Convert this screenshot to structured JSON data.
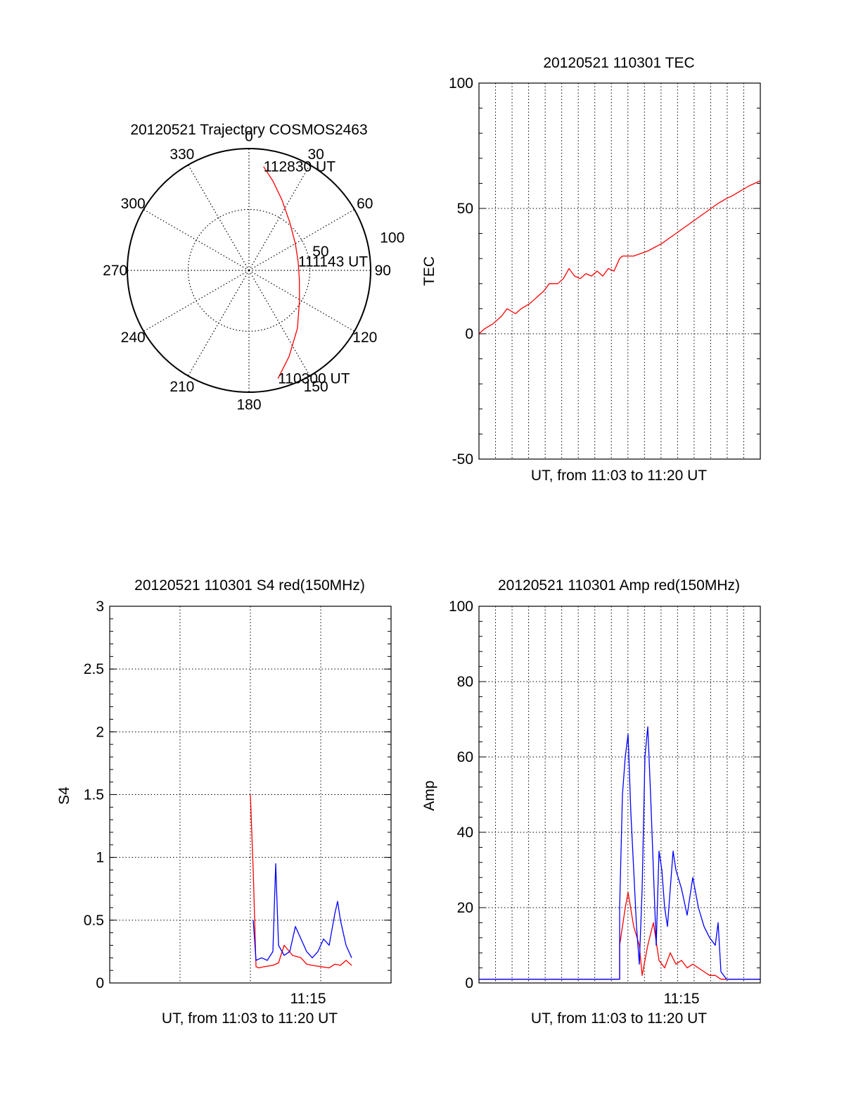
{
  "chart_data": [
    {
      "type": "polar",
      "title": "20120521 Trajectory COSMOS2463",
      "angle_labels": [
        "0",
        "30",
        "60",
        "90",
        "120",
        "150",
        "180",
        "210",
        "240",
        "270",
        "300",
        "330"
      ],
      "radial_labels": [
        "50",
        "100"
      ],
      "radius_max": 100,
      "grid": true,
      "series": [
        {
          "color": "#ff0000",
          "points": [
            {
              "az": 8,
              "r": 86
            },
            {
              "az": 15,
              "r": 76
            },
            {
              "az": 25,
              "r": 64
            },
            {
              "az": 40,
              "r": 52
            },
            {
              "az": 60,
              "r": 44
            },
            {
              "az": 80,
              "r": 41
            },
            {
              "az": 100,
              "r": 42
            },
            {
              "az": 120,
              "r": 48
            },
            {
              "az": 140,
              "r": 62
            },
            {
              "az": 155,
              "r": 78
            },
            {
              "az": 165,
              "r": 92
            }
          ]
        }
      ],
      "annotations": [
        {
          "text": "112830 UT",
          "az": 8,
          "r": 86
        },
        {
          "text": "111143 UT",
          "az": 80,
          "r": 41
        },
        {
          "text": "110300 UT",
          "az": 165,
          "r": 92
        }
      ]
    },
    {
      "type": "line",
      "title": "20120521 110301 TEC",
      "xlabel": "UT, from 11:03 to 11:20 UT",
      "ylabel": "TEC",
      "ylim": [
        -50,
        100
      ],
      "xlim": [
        0,
        1
      ],
      "yticks": [
        "-50",
        "0",
        "50",
        "100"
      ],
      "xticks": [],
      "grid": true,
      "series": [
        {
          "color": "#ff0000",
          "x": [
            0,
            0.02,
            0.05,
            0.08,
            0.1,
            0.13,
            0.15,
            0.18,
            0.2,
            0.23,
            0.25,
            0.28,
            0.3,
            0.32,
            0.34,
            0.36,
            0.38,
            0.4,
            0.42,
            0.44,
            0.46,
            0.48,
            0.5,
            0.51,
            0.52,
            0.55,
            0.6,
            0.65,
            0.7,
            0.75,
            0.8,
            0.85,
            0.88,
            0.9,
            0.93,
            0.96,
            1.0
          ],
          "y": [
            0,
            2,
            4,
            7,
            10,
            8,
            10,
            12,
            14,
            17,
            20,
            20,
            22,
            26,
            23,
            22,
            24,
            23,
            25,
            23,
            26,
            25,
            30,
            31,
            31,
            31,
            33,
            36,
            40,
            44,
            48,
            52,
            54,
            55,
            57,
            59,
            61
          ]
        }
      ]
    },
    {
      "type": "line",
      "title": "20120521 110301 S4 red(150MHz)",
      "xlabel": "UT, from 11:03 to 11:20 UT",
      "ylabel": "S4",
      "ylim": [
        0,
        3
      ],
      "xlim": [
        0,
        1
      ],
      "yticks": [
        "0",
        "0.5",
        "1",
        "1.5",
        "2",
        "2.5",
        "3"
      ],
      "xticks": [
        {
          "label": "11:15",
          "x": 0.705
        }
      ],
      "grid": true,
      "series": [
        {
          "color": "#ff0000",
          "x": [
            0.5,
            0.51,
            0.52,
            0.53,
            0.55,
            0.58,
            0.6,
            0.62,
            0.65,
            0.68,
            0.7,
            0.72,
            0.75,
            0.78,
            0.8,
            0.82,
            0.84,
            0.86
          ],
          "y": [
            1.5,
            0.9,
            0.13,
            0.12,
            0.13,
            0.14,
            0.16,
            0.3,
            0.22,
            0.2,
            0.15,
            0.14,
            0.13,
            0.12,
            0.15,
            0.14,
            0.18,
            0.14
          ]
        },
        {
          "color": "#0000ff",
          "x": [
            0.51,
            0.52,
            0.54,
            0.56,
            0.58,
            0.59,
            0.6,
            0.62,
            0.64,
            0.66,
            0.68,
            0.7,
            0.72,
            0.74,
            0.76,
            0.78,
            0.8,
            0.81,
            0.82,
            0.84,
            0.86
          ],
          "y": [
            0.5,
            0.18,
            0.2,
            0.18,
            0.25,
            0.95,
            0.3,
            0.22,
            0.25,
            0.45,
            0.35,
            0.25,
            0.2,
            0.25,
            0.35,
            0.3,
            0.55,
            0.65,
            0.5,
            0.3,
            0.2
          ]
        }
      ]
    },
    {
      "type": "line",
      "title": "20120521 110301 Amp red(150MHz)",
      "xlabel": "UT, from 11:03 to 11:20 UT",
      "ylabel": "Amp",
      "ylim": [
        0,
        100
      ],
      "xlim": [
        0,
        1
      ],
      "yticks": [
        "0",
        "20",
        "40",
        "60",
        "80",
        "100"
      ],
      "xticks": [
        {
          "label": "11:15",
          "x": 0.72
        }
      ],
      "grid": true,
      "series": [
        {
          "color": "#ff0000",
          "x": [
            0,
            0.5,
            0.5,
            0.52,
            0.53,
            0.55,
            0.57,
            0.58,
            0.6,
            0.62,
            0.64,
            0.66,
            0.68,
            0.7,
            0.72,
            0.74,
            0.76,
            0.8,
            0.82,
            0.84,
            0.86,
            1.0
          ],
          "y": [
            1,
            1,
            10,
            20,
            24,
            15,
            10,
            2,
            10,
            16,
            6,
            4,
            8,
            5,
            6,
            4,
            5,
            3,
            2,
            2,
            1,
            1
          ]
        },
        {
          "color": "#0000ff",
          "x": [
            0,
            0.5,
            0.5,
            0.51,
            0.52,
            0.53,
            0.54,
            0.55,
            0.56,
            0.57,
            0.58,
            0.59,
            0.6,
            0.61,
            0.62,
            0.63,
            0.64,
            0.65,
            0.66,
            0.67,
            0.68,
            0.69,
            0.7,
            0.72,
            0.74,
            0.76,
            0.78,
            0.8,
            0.82,
            0.84,
            0.85,
            0.86,
            0.88,
            1.0
          ],
          "y": [
            1,
            1,
            20,
            50,
            60,
            66,
            45,
            30,
            15,
            5,
            25,
            60,
            68,
            50,
            30,
            10,
            35,
            30,
            20,
            15,
            25,
            35,
            30,
            25,
            18,
            28,
            20,
            15,
            12,
            10,
            16,
            3,
            1,
            1
          ]
        }
      ]
    }
  ]
}
